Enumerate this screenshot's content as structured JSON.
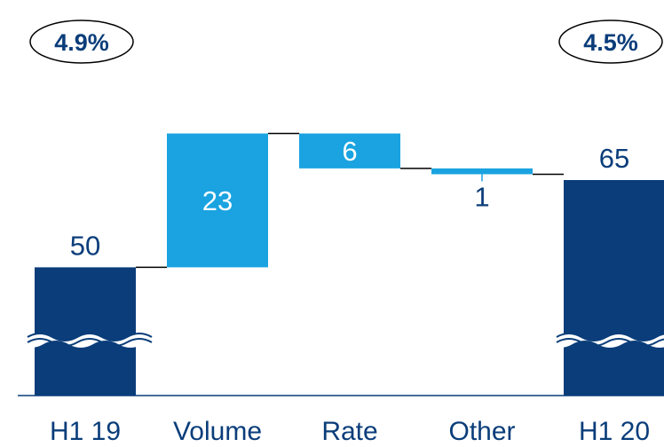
{
  "chart_data": {
    "type": "waterfall",
    "title": "",
    "categories": [
      "H1 19",
      "Volume",
      "Rate",
      "Other",
      "H1 20"
    ],
    "bars": [
      {
        "category": "H1 19",
        "kind": "total",
        "value": 50,
        "label": "50"
      },
      {
        "category": "Volume",
        "kind": "increase",
        "value": 23,
        "label": "23"
      },
      {
        "category": "Rate",
        "kind": "decrease",
        "value": 6,
        "label": "6"
      },
      {
        "category": "Other",
        "kind": "decrease",
        "value": 1,
        "label": "1"
      },
      {
        "category": "H1 20",
        "kind": "total",
        "value": 65,
        "label": "65"
      }
    ],
    "badges": [
      {
        "category": "H1 19",
        "text": "4.9%"
      },
      {
        "category": "H1 20",
        "text": "4.5%"
      }
    ],
    "axis_break": true,
    "legend": "none",
    "grid": false,
    "colors": {
      "total": "#0a3d7a",
      "change": "#1aa3e0",
      "label_on_dark": "#0a3d7a",
      "label_on_change": "#ffffff",
      "connector": "#000000"
    }
  }
}
